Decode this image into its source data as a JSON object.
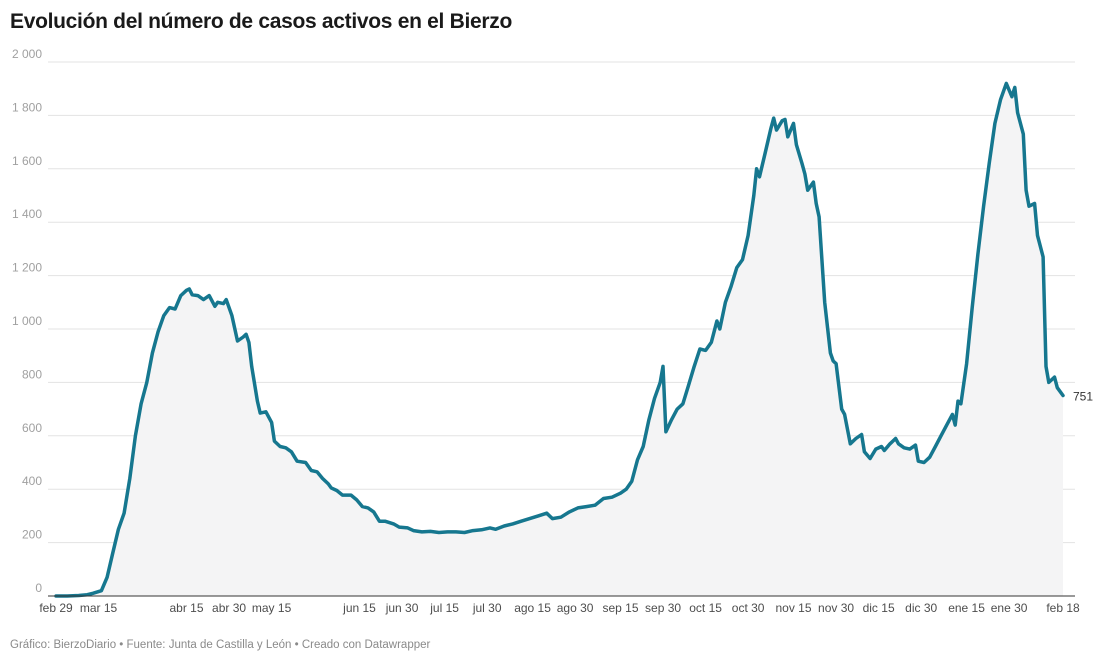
{
  "title": "Evolución del número de casos activos en el Bierzo",
  "footer": "Gráfico: BierzoDiario • Fuente: Junta de Castilla y León • Creado con Datawrapper",
  "chart_data": {
    "type": "area",
    "title": "Evolución del número de casos activos en el Bierzo",
    "xlabel": "",
    "ylabel": "",
    "ylim": [
      0,
      2000
    ],
    "xlim": [
      "2020-02-29",
      "2021-02-18"
    ],
    "grid": true,
    "line_color": "#16778f",
    "fill_color": "#f4f4f5",
    "y_ticks": [
      {
        "value": 0,
        "label": "0"
      },
      {
        "value": 200,
        "label": "200"
      },
      {
        "value": 400,
        "label": "400"
      },
      {
        "value": 600,
        "label": "600"
      },
      {
        "value": 800,
        "label": "800"
      },
      {
        "value": 1000,
        "label": "1 000"
      },
      {
        "value": 1200,
        "label": "1 200"
      },
      {
        "value": 1400,
        "label": "1 400"
      },
      {
        "value": 1600,
        "label": "1 600"
      },
      {
        "value": 1800,
        "label": "1 800"
      },
      {
        "value": 2000,
        "label": "2 000"
      }
    ],
    "x_ticks": [
      {
        "date": "2020-02-29",
        "label": "feb 29"
      },
      {
        "date": "2020-03-15",
        "label": "mar 15"
      },
      {
        "date": "2020-04-15",
        "label": "abr 15"
      },
      {
        "date": "2020-04-30",
        "label": "abr 30"
      },
      {
        "date": "2020-05-15",
        "label": "may 15"
      },
      {
        "date": "2020-06-15",
        "label": "jun 15"
      },
      {
        "date": "2020-06-30",
        "label": "jun 30"
      },
      {
        "date": "2020-07-15",
        "label": "jul 15"
      },
      {
        "date": "2020-07-30",
        "label": "jul 30"
      },
      {
        "date": "2020-08-15",
        "label": "ago 15"
      },
      {
        "date": "2020-08-30",
        "label": "ago 30"
      },
      {
        "date": "2020-09-15",
        "label": "sep 15"
      },
      {
        "date": "2020-09-30",
        "label": "sep 30"
      },
      {
        "date": "2020-10-15",
        "label": "oct 15"
      },
      {
        "date": "2020-10-30",
        "label": "oct 30"
      },
      {
        "date": "2020-11-15",
        "label": "nov 15"
      },
      {
        "date": "2020-11-30",
        "label": "nov 30"
      },
      {
        "date": "2020-12-15",
        "label": "dic 15"
      },
      {
        "date": "2020-12-30",
        "label": "dic 30"
      },
      {
        "date": "2021-01-15",
        "label": "ene 15"
      },
      {
        "date": "2021-01-30",
        "label": "ene 30"
      },
      {
        "date": "2021-02-18",
        "label": "feb 18"
      }
    ],
    "end_label": "751",
    "series": [
      {
        "points": [
          [
            "2020-02-29",
            0
          ],
          [
            "2020-03-04",
            0
          ],
          [
            "2020-03-08",
            2
          ],
          [
            "2020-03-11",
            5
          ],
          [
            "2020-03-13",
            10
          ],
          [
            "2020-03-16",
            20
          ],
          [
            "2020-03-18",
            70
          ],
          [
            "2020-03-20",
            160
          ],
          [
            "2020-03-22",
            250
          ],
          [
            "2020-03-24",
            310
          ],
          [
            "2020-03-26",
            440
          ],
          [
            "2020-03-28",
            600
          ],
          [
            "2020-03-30",
            720
          ],
          [
            "2020-04-01",
            800
          ],
          [
            "2020-04-03",
            910
          ],
          [
            "2020-04-05",
            990
          ],
          [
            "2020-04-07",
            1050
          ],
          [
            "2020-04-09",
            1080
          ],
          [
            "2020-04-11",
            1075
          ],
          [
            "2020-04-13",
            1125
          ],
          [
            "2020-04-15",
            1145
          ],
          [
            "2020-04-16",
            1150
          ],
          [
            "2020-04-17",
            1128
          ],
          [
            "2020-04-19",
            1125
          ],
          [
            "2020-04-21",
            1110
          ],
          [
            "2020-04-23",
            1125
          ],
          [
            "2020-04-25",
            1085
          ],
          [
            "2020-04-26",
            1100
          ],
          [
            "2020-04-28",
            1095
          ],
          [
            "2020-04-29",
            1110
          ],
          [
            "2020-05-01",
            1050
          ],
          [
            "2020-05-03",
            955
          ],
          [
            "2020-05-05",
            970
          ],
          [
            "2020-05-06",
            980
          ],
          [
            "2020-05-07",
            950
          ],
          [
            "2020-05-08",
            860
          ],
          [
            "2020-05-10",
            730
          ],
          [
            "2020-05-11",
            685
          ],
          [
            "2020-05-13",
            690
          ],
          [
            "2020-05-15",
            650
          ],
          [
            "2020-05-16",
            580
          ],
          [
            "2020-05-18",
            560
          ],
          [
            "2020-05-20",
            555
          ],
          [
            "2020-05-22",
            540
          ],
          [
            "2020-05-24",
            505
          ],
          [
            "2020-05-27",
            500
          ],
          [
            "2020-05-29",
            470
          ],
          [
            "2020-05-31",
            465
          ],
          [
            "2020-06-02",
            440
          ],
          [
            "2020-06-04",
            420
          ],
          [
            "2020-06-05",
            405
          ],
          [
            "2020-06-07",
            395
          ],
          [
            "2020-06-09",
            378
          ],
          [
            "2020-06-12",
            378
          ],
          [
            "2020-06-14",
            360
          ],
          [
            "2020-06-16",
            335
          ],
          [
            "2020-06-18",
            330
          ],
          [
            "2020-06-20",
            315
          ],
          [
            "2020-06-22",
            280
          ],
          [
            "2020-06-24",
            280
          ],
          [
            "2020-06-27",
            270
          ],
          [
            "2020-06-29",
            258
          ],
          [
            "2020-07-02",
            255
          ],
          [
            "2020-07-04",
            245
          ],
          [
            "2020-07-07",
            240
          ],
          [
            "2020-07-10",
            242
          ],
          [
            "2020-07-13",
            238
          ],
          [
            "2020-07-16",
            240
          ],
          [
            "2020-07-19",
            240
          ],
          [
            "2020-07-22",
            238
          ],
          [
            "2020-07-25",
            245
          ],
          [
            "2020-07-28",
            248
          ],
          [
            "2020-07-31",
            255
          ],
          [
            "2020-08-02",
            250
          ],
          [
            "2020-08-05",
            262
          ],
          [
            "2020-08-08",
            270
          ],
          [
            "2020-08-11",
            280
          ],
          [
            "2020-08-14",
            290
          ],
          [
            "2020-08-17",
            300
          ],
          [
            "2020-08-20",
            310
          ],
          [
            "2020-08-22",
            290
          ],
          [
            "2020-08-25",
            295
          ],
          [
            "2020-08-28",
            315
          ],
          [
            "2020-08-31",
            330
          ],
          [
            "2020-09-03",
            335
          ],
          [
            "2020-09-06",
            340
          ],
          [
            "2020-09-09",
            365
          ],
          [
            "2020-09-12",
            370
          ],
          [
            "2020-09-15",
            385
          ],
          [
            "2020-09-17",
            400
          ],
          [
            "2020-09-19",
            430
          ],
          [
            "2020-09-21",
            510
          ],
          [
            "2020-09-23",
            560
          ],
          [
            "2020-09-25",
            660
          ],
          [
            "2020-09-27",
            740
          ],
          [
            "2020-09-29",
            800
          ],
          [
            "2020-09-30",
            860
          ],
          [
            "2020-10-01",
            615
          ],
          [
            "2020-10-03",
            660
          ],
          [
            "2020-10-05",
            700
          ],
          [
            "2020-10-07",
            720
          ],
          [
            "2020-10-09",
            790
          ],
          [
            "2020-10-11",
            860
          ],
          [
            "2020-10-13",
            925
          ],
          [
            "2020-10-15",
            920
          ],
          [
            "2020-10-17",
            950
          ],
          [
            "2020-10-19",
            1030
          ],
          [
            "2020-10-20",
            1000
          ],
          [
            "2020-10-22",
            1100
          ],
          [
            "2020-10-24",
            1160
          ],
          [
            "2020-10-26",
            1230
          ],
          [
            "2020-10-28",
            1260
          ],
          [
            "2020-10-30",
            1350
          ],
          [
            "2020-11-01",
            1500
          ],
          [
            "2020-11-02",
            1600
          ],
          [
            "2020-11-03",
            1570
          ],
          [
            "2020-11-05",
            1660
          ],
          [
            "2020-11-07",
            1750
          ],
          [
            "2020-11-08",
            1790
          ],
          [
            "2020-11-09",
            1745
          ],
          [
            "2020-11-11",
            1780
          ],
          [
            "2020-11-12",
            1785
          ],
          [
            "2020-11-13",
            1720
          ],
          [
            "2020-11-15",
            1770
          ],
          [
            "2020-11-16",
            1690
          ],
          [
            "2020-11-18",
            1620
          ],
          [
            "2020-11-19",
            1580
          ],
          [
            "2020-11-20",
            1520
          ],
          [
            "2020-11-22",
            1550
          ],
          [
            "2020-11-23",
            1470
          ],
          [
            "2020-11-24",
            1420
          ],
          [
            "2020-11-26",
            1100
          ],
          [
            "2020-11-28",
            910
          ],
          [
            "2020-11-29",
            880
          ],
          [
            "2020-11-30",
            870
          ],
          [
            "2020-12-02",
            700
          ],
          [
            "2020-12-03",
            680
          ],
          [
            "2020-12-05",
            570
          ],
          [
            "2020-12-07",
            590
          ],
          [
            "2020-12-09",
            605
          ],
          [
            "2020-12-10",
            540
          ],
          [
            "2020-12-12",
            515
          ],
          [
            "2020-12-14",
            550
          ],
          [
            "2020-12-16",
            560
          ],
          [
            "2020-12-17",
            545
          ],
          [
            "2020-12-19",
            570
          ],
          [
            "2020-12-21",
            590
          ],
          [
            "2020-12-22",
            570
          ],
          [
            "2020-12-24",
            555
          ],
          [
            "2020-12-26",
            550
          ],
          [
            "2020-12-28",
            565
          ],
          [
            "2020-12-29",
            505
          ],
          [
            "2020-12-31",
            500
          ],
          [
            "2021-01-02",
            520
          ],
          [
            "2021-01-04",
            560
          ],
          [
            "2021-01-06",
            600
          ],
          [
            "2021-01-08",
            640
          ],
          [
            "2021-01-10",
            680
          ],
          [
            "2021-01-11",
            640
          ],
          [
            "2021-01-12",
            730
          ],
          [
            "2021-01-13",
            720
          ],
          [
            "2021-01-15",
            870
          ],
          [
            "2021-01-17",
            1080
          ],
          [
            "2021-01-19",
            1280
          ],
          [
            "2021-01-21",
            1460
          ],
          [
            "2021-01-23",
            1620
          ],
          [
            "2021-01-25",
            1770
          ],
          [
            "2021-01-27",
            1860
          ],
          [
            "2021-01-29",
            1920
          ],
          [
            "2021-01-31",
            1870
          ],
          [
            "2021-02-01",
            1905
          ],
          [
            "2021-02-02",
            1810
          ],
          [
            "2021-02-04",
            1730
          ],
          [
            "2021-02-05",
            1520
          ],
          [
            "2021-02-06",
            1460
          ],
          [
            "2021-02-08",
            1470
          ],
          [
            "2021-02-09",
            1350
          ],
          [
            "2021-02-11",
            1270
          ],
          [
            "2021-02-12",
            860
          ],
          [
            "2021-02-13",
            800
          ],
          [
            "2021-02-15",
            820
          ],
          [
            "2021-02-16",
            780
          ],
          [
            "2021-02-18",
            751
          ]
        ]
      }
    ]
  }
}
